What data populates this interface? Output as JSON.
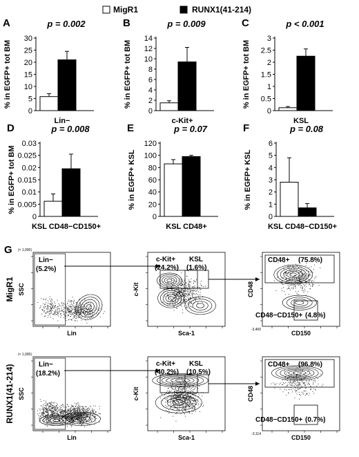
{
  "legend": [
    {
      "label": "MigR1",
      "color": "#ffffff"
    },
    {
      "label": "RUNX1(41-214)",
      "color": "#000000"
    }
  ],
  "chart_data": [
    {
      "id": "A",
      "type": "bar",
      "panel_label": "A",
      "pvalue": "p = 0.002",
      "ylabel": "% in EGFP+ tot BM",
      "xlabel": "Lin−",
      "ylim": [
        0,
        30
      ],
      "yticks": [
        "0",
        "5",
        "10",
        "15",
        "20",
        "25",
        "30"
      ],
      "series": [
        {
          "name": "MigR1",
          "values": [
            5.8
          ],
          "error": [
            1.2
          ]
        },
        {
          "name": "RUNX1(41-214)",
          "values": [
            21
          ],
          "error": [
            3.5
          ]
        }
      ]
    },
    {
      "id": "B",
      "type": "bar",
      "panel_label": "B",
      "pvalue": "p = 0.009",
      "ylabel": "% in EGFP+ tot BM",
      "xlabel": "c-Kit+",
      "ylim": [
        0,
        14
      ],
      "yticks": [
        "0",
        "2",
        "4",
        "6",
        "8",
        "10",
        "12",
        "14"
      ],
      "series": [
        {
          "name": "MigR1",
          "values": [
            1.5
          ],
          "error": [
            0.4
          ]
        },
        {
          "name": "RUNX1(41-214)",
          "values": [
            9.4
          ],
          "error": [
            2.8
          ]
        }
      ]
    },
    {
      "id": "C",
      "type": "bar",
      "panel_label": "C",
      "pvalue": "p < 0.001",
      "ylabel": "% in EGFP+ tot BM",
      "xlabel": "KSL",
      "ylim": [
        0,
        3
      ],
      "yticks": [
        "0",
        "0.5",
        "1",
        "1.5",
        "2",
        "2.5",
        "3"
      ],
      "series": [
        {
          "name": "MigR1",
          "values": [
            0.12
          ],
          "error": [
            0.05
          ]
        },
        {
          "name": "RUNX1(41-214)",
          "values": [
            2.25
          ],
          "error": [
            0.3
          ]
        }
      ]
    },
    {
      "id": "D",
      "type": "bar",
      "panel_label": "D",
      "pvalue": "p = 0.008",
      "ylabel": "% in EGFP+ tot BM",
      "xlabel": "KSL CD48−CD150+",
      "ylim": [
        0,
        0.03
      ],
      "yticks": [
        "0",
        "0.005",
        "0.01",
        "0.015",
        "0.02",
        "0.025",
        "0.03"
      ],
      "series": [
        {
          "name": "MigR1",
          "values": [
            0.0062
          ],
          "error": [
            0.003
          ]
        },
        {
          "name": "RUNX1(41-214)",
          "values": [
            0.0195
          ],
          "error": [
            0.006
          ]
        }
      ]
    },
    {
      "id": "E",
      "type": "bar",
      "panel_label": "E",
      "pvalue": "p = 0.07",
      "ylabel": "% in EGFP+ KSL",
      "xlabel": "KSL CD48+",
      "ylim": [
        0,
        120
      ],
      "yticks": [
        "0",
        "20",
        "40",
        "60",
        "80",
        "100",
        "120"
      ],
      "series": [
        {
          "name": "MigR1",
          "values": [
            86
          ],
          "error": [
            7
          ]
        },
        {
          "name": "RUNX1(41-214)",
          "values": [
            98
          ],
          "error": [
            2
          ]
        }
      ]
    },
    {
      "id": "F",
      "type": "bar",
      "panel_label": "F",
      "pvalue": "p = 0.08",
      "ylabel": "% in EGFP+ KSL",
      "xlabel": "KSL CD48−CD150+",
      "ylim": [
        0,
        6
      ],
      "yticks": [
        "0",
        "1",
        "2",
        "3",
        "4",
        "5",
        "6"
      ],
      "series": [
        {
          "name": "MigR1",
          "values": [
            2.8
          ],
          "error": [
            2.0
          ]
        },
        {
          "name": "RUNX1(41-214)",
          "values": [
            0.7
          ],
          "error": [
            0.35
          ]
        }
      ]
    }
  ],
  "flow": {
    "panel_label": "G",
    "rows": [
      {
        "label": "MigR1",
        "plots": [
          {
            "xlabel": "Lin",
            "ylabel": "SSC",
            "scale": "(× 1,000)",
            "gates": [
              {
                "name": "Lin−",
                "pct": "(5.2%)"
              }
            ]
          },
          {
            "xlabel": "Sca-1",
            "ylabel": "c-Kit",
            "gates": [
              {
                "name": "c-Kit+",
                "pct": "(24.2%)"
              },
              {
                "name": "KSL",
                "pct": "(1.6%)"
              }
            ]
          },
          {
            "xlabel": "CD150",
            "ylabel": "CD48",
            "xmin": "-3,400",
            "gates": [
              {
                "name": "CD48+",
                "pct": "(75.8%)"
              },
              {
                "name": "CD48−CD150+",
                "pct": "(4.8%)"
              }
            ]
          }
        ]
      },
      {
        "label": "RUNX1(41-214)",
        "plots": [
          {
            "xlabel": "Lin",
            "ylabel": "SSC",
            "scale": "(× 1,000)",
            "gates": [
              {
                "name": "Lin−",
                "pct": "(18.2%)"
              }
            ]
          },
          {
            "xlabel": "Sca-1",
            "ylabel": "c-Kit",
            "gates": [
              {
                "name": "c-Kit+",
                "pct": "(40.2%)"
              },
              {
                "name": "KSL",
                "pct": "(10.5%)"
              }
            ]
          },
          {
            "xlabel": "CD150",
            "ylabel": "CD48",
            "xmin": "-3,114",
            "gates": [
              {
                "name": "CD48+",
                "pct": "(96.8%)"
              },
              {
                "name": "CD48−CD150+",
                "pct": "(0.7%)"
              }
            ]
          }
        ]
      }
    ]
  }
}
